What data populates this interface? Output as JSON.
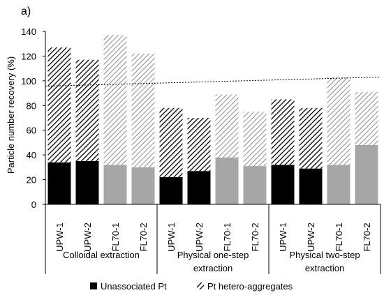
{
  "chart_data": {
    "type": "bar",
    "panel_label": "a)",
    "ylabel": "Particle number recovery (%)",
    "ylim": [
      0,
      140
    ],
    "yticks": [
      0,
      20,
      40,
      60,
      80,
      100,
      120,
      140
    ],
    "reference_line": 103,
    "grid": false,
    "legend_position": "bottom",
    "groups": [
      {
        "label_lines": [
          "Colloidal extraction"
        ]
      },
      {
        "label_lines": [
          "Physical one-step",
          "extraction"
        ]
      },
      {
        "label_lines": [
          "Physical two-step",
          "extraction"
        ]
      }
    ],
    "categories": [
      "UPW-1",
      "UPW-2",
      "FL70-1",
      "FL70-2",
      "UPW-1",
      "UPW-2",
      "FL70-1",
      "FL70-2",
      "UPW-1",
      "UPW-2",
      "FL70-1",
      "FL70-2"
    ],
    "sample_type": [
      "UPW",
      "UPW",
      "FL70",
      "FL70",
      "UPW",
      "UPW",
      "FL70",
      "FL70",
      "UPW",
      "UPW",
      "FL70",
      "FL70"
    ],
    "series": [
      {
        "name": "Unassociated Pt",
        "values": [
          34,
          35,
          32,
          30,
          22,
          27,
          38,
          31,
          32,
          29,
          32,
          48
        ]
      },
      {
        "name": "Pt hetero-aggregates",
        "values": [
          93,
          82,
          105,
          92,
          56,
          43,
          51,
          44,
          53,
          49,
          71,
          43
        ]
      }
    ],
    "colors": {
      "upw_unassociated": "#000000",
      "fl70_unassociated": "#a6a6a6",
      "upw_hatch": "#000000",
      "fl70_hatch": "#8c8c8c"
    }
  }
}
